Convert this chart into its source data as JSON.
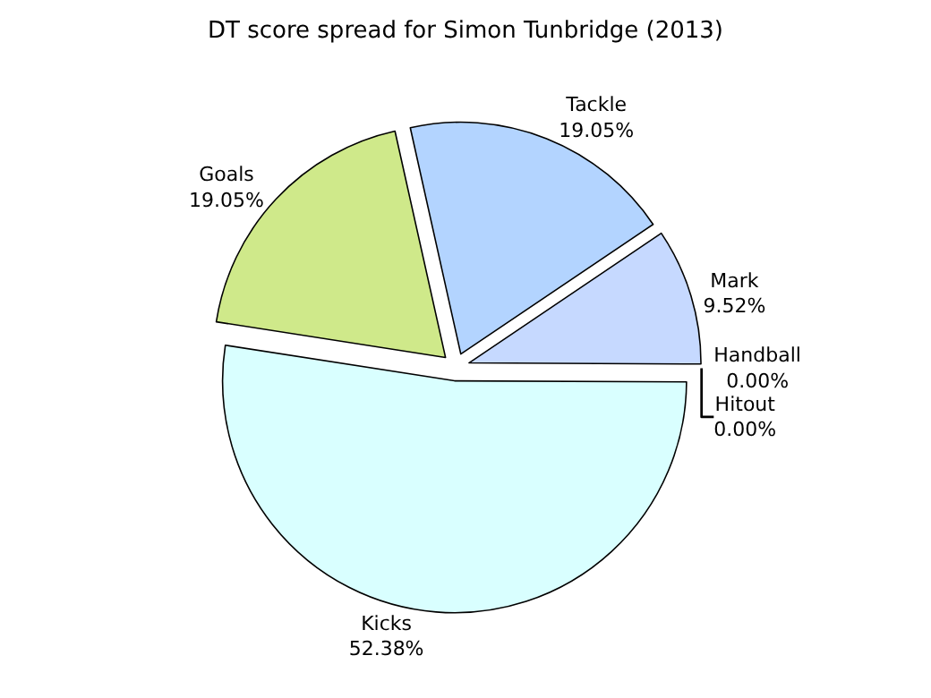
{
  "chart_data": {
    "type": "pie",
    "title": "DT score spread for Simon Tunbridge (2013)",
    "categories": [
      "Mark",
      "Tackle",
      "Goals",
      "Kicks",
      "Handball",
      "Hitout"
    ],
    "values": [
      9.52,
      19.05,
      19.05,
      52.38,
      0,
      0
    ],
    "value_labels": [
      "9.52%",
      "19.05%",
      "19.05%",
      "52.38%",
      "0.00%",
      "0.00%"
    ],
    "colors": [
      "#c6d9ff",
      "#b3d4ff",
      "#cfe98a",
      "#d9ffff",
      "#ffe0e0",
      "#e0ffe0"
    ]
  }
}
